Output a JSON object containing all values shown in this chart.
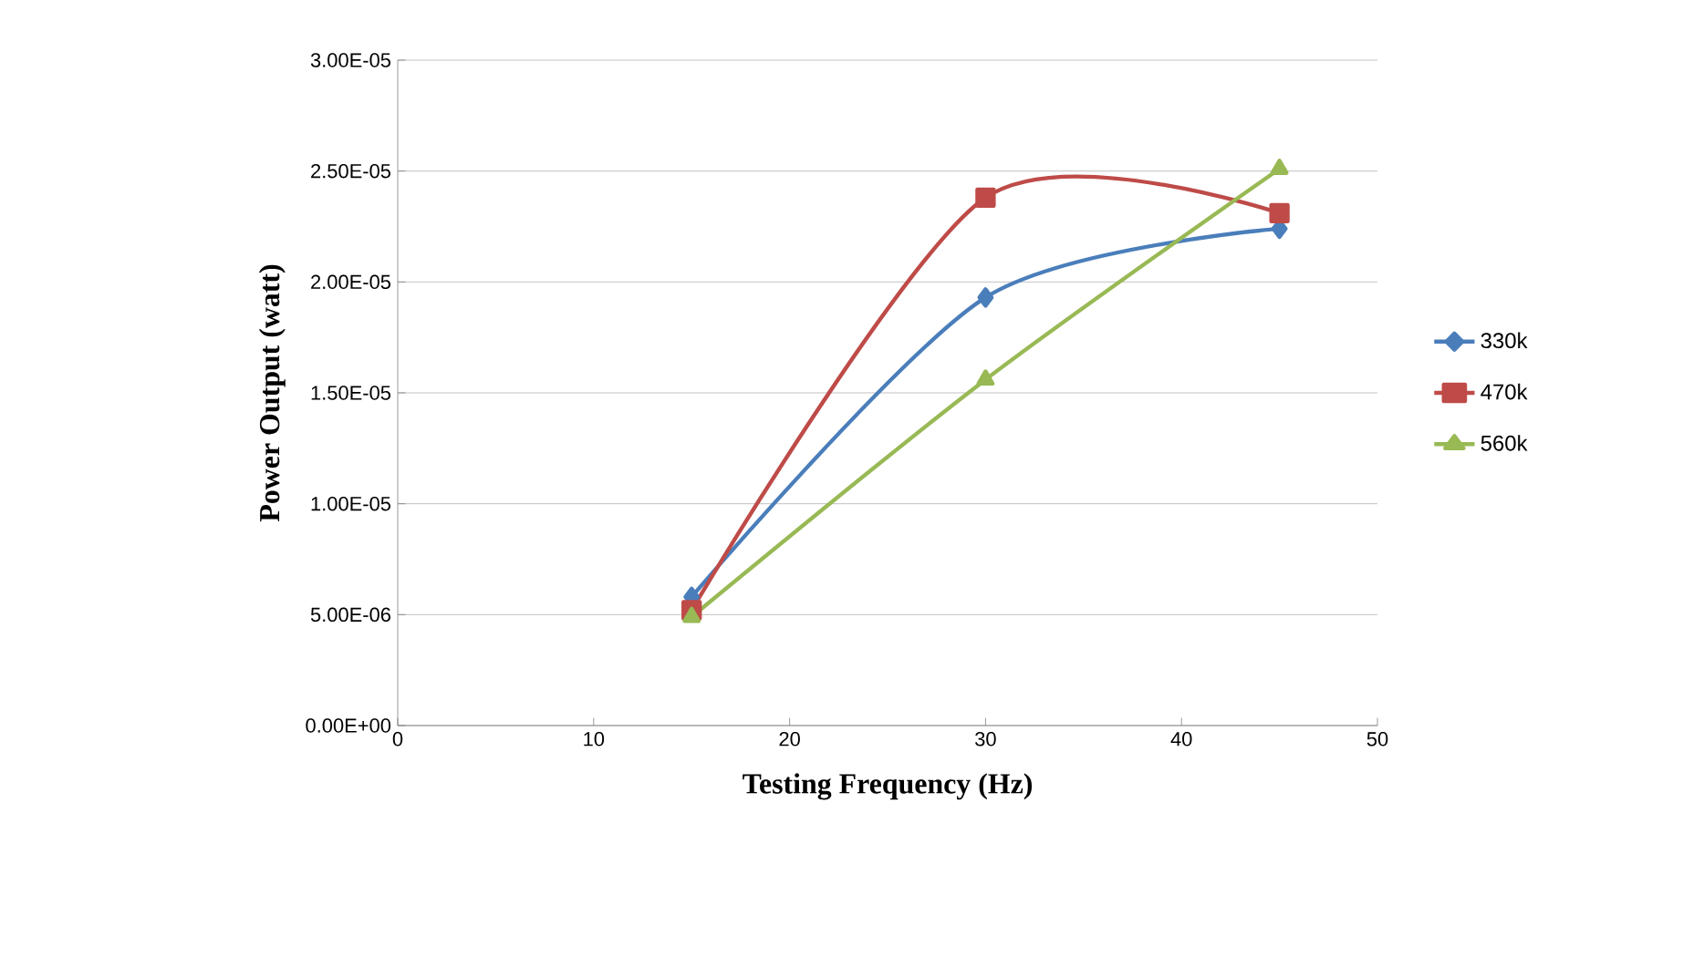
{
  "chart_data": {
    "type": "line",
    "xlabel": "Testing Frequency (Hz)",
    "ylabel": "Power Output (watt)",
    "x": [
      15,
      30,
      45
    ],
    "series": [
      {
        "name": "330k",
        "color": "#4a7ebb",
        "marker": "diamond",
        "values": [
          5.8e-06,
          1.93e-05,
          2.24e-05
        ]
      },
      {
        "name": "470k",
        "color": "#be4b48",
        "marker": "square",
        "values": [
          5.2e-06,
          2.38e-05,
          2.31e-05
        ]
      },
      {
        "name": "560k",
        "color": "#98b954",
        "marker": "triangle",
        "values": [
          4.9e-06,
          1.56e-05,
          2.51e-05
        ]
      }
    ],
    "xlim": [
      0,
      50
    ],
    "xticks": [
      0,
      10,
      20,
      30,
      40,
      50
    ],
    "ylim": [
      0,
      3e-05
    ],
    "yticks": [
      {
        "value": 0,
        "label": "0.00E+00"
      },
      {
        "value": 5e-06,
        "label": "5.00E-06"
      },
      {
        "value": 1e-05,
        "label": "1.00E-05"
      },
      {
        "value": 1.5e-05,
        "label": "1.50E-05"
      },
      {
        "value": 2e-05,
        "label": "2.00E-05"
      },
      {
        "value": 2.5e-05,
        "label": "2.50E-05"
      },
      {
        "value": 3e-05,
        "label": "3.00E-05"
      }
    ],
    "grid": "y",
    "legend": "right",
    "line_style": "solid"
  }
}
